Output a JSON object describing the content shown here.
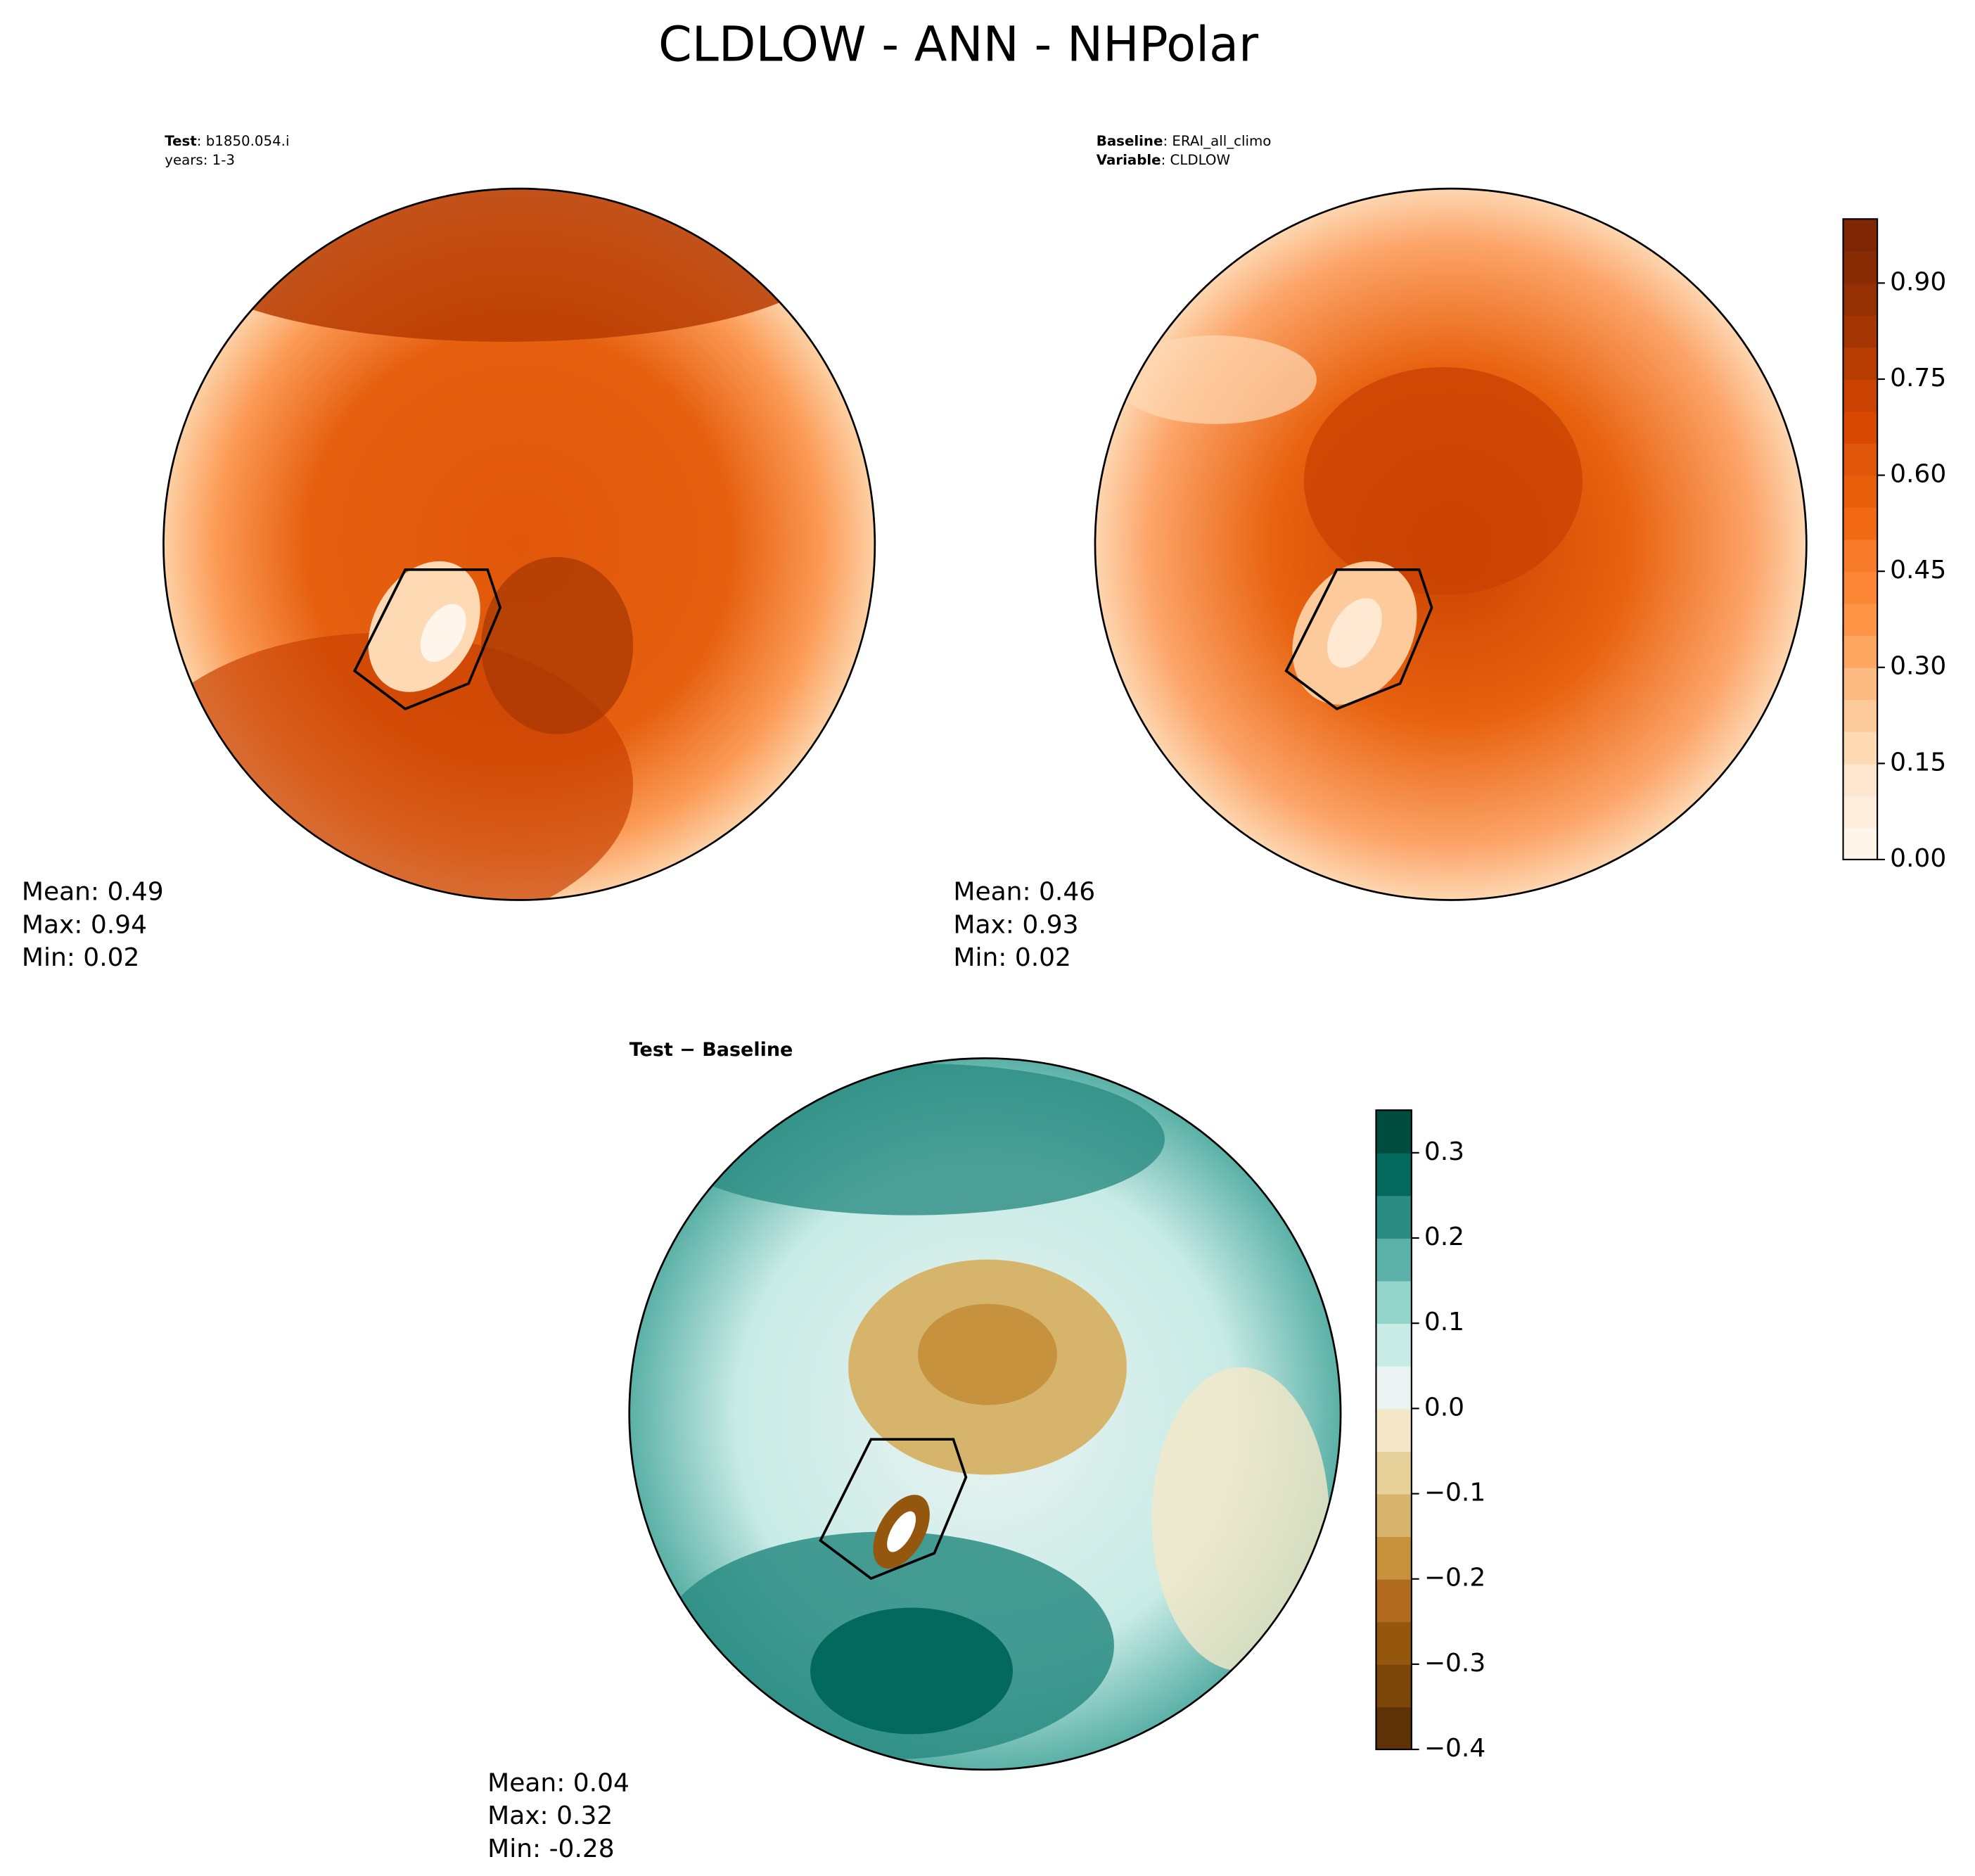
{
  "title": "CLDLOW - ANN - NHPolar",
  "panels": [
    {
      "lines": [
        {
          "bold": "Test",
          "text": ": b1850.054.i"
        },
        {
          "text": "years: 1-3"
        }
      ],
      "stats": [
        "Mean:  0.49",
        "Max:  0.94",
        "Min:  0.02"
      ]
    },
    {
      "lines": [
        {
          "bold": "Baseline",
          "text": ": ERAI_all_climo"
        },
        {
          "bold": "Variable",
          "text": ": CLDLOW"
        }
      ],
      "stats": [
        "Mean:  0.46",
        "Max:  0.93",
        "Min:  0.02"
      ]
    },
    {
      "lines": [
        {
          "bold": "Test − Baseline"
        }
      ],
      "stats": [
        "Mean:  0.04",
        "Max:  0.32",
        "Min: -0.28"
      ]
    }
  ],
  "colorbars": [
    {
      "lim": [
        0,
        1.0
      ],
      "ticks": [
        {
          "value": 0,
          "label": "0.00"
        },
        {
          "value": 0.15,
          "label": "0.15"
        },
        {
          "value": 0.3,
          "label": "0.30"
        },
        {
          "value": 0.45,
          "label": "0.45"
        },
        {
          "value": 0.6,
          "label": "0.60"
        },
        {
          "value": 0.75,
          "label": "0.75"
        },
        {
          "value": 0.9,
          "label": "0.90"
        }
      ],
      "colors": [
        "#fff5eb",
        "#feeddc",
        "#fee6ce",
        "#fdd9b4",
        "#fdcb9b",
        "#fdbb84",
        "#fda762",
        "#fd9446",
        "#fb8636",
        "#f77a2a",
        "#f16913",
        "#e75e0b",
        "#e1570a",
        "#d84801",
        "#c94202",
        "#b73c02",
        "#a53603",
        "#953004",
        "#862b04",
        "#7f2704"
      ]
    },
    {
      "lim": [
        -0.4,
        0.35
      ],
      "ticks": [
        {
          "value": -0.4,
          "label": "−0.4"
        },
        {
          "value": -0.3,
          "label": "−0.3"
        },
        {
          "value": -0.2,
          "label": "−0.2"
        },
        {
          "value": -0.1,
          "label": "−0.1"
        },
        {
          "value": 0.0,
          "label": "0.0"
        },
        0.1,
        0.2,
        0.3
      ],
      "colors": [
        "#5c3206",
        "#7a4609",
        "#95570e",
        "#b06b1f",
        "#c6923e",
        "#d7b46c",
        "#e7d19b",
        "#f5e8c8",
        "#eaf3f2",
        "#c8ebe5",
        "#92d4c9",
        "#5bb1a7",
        "#2a8c82",
        "#03695d",
        "#004d40"
      ]
    }
  ]
}
